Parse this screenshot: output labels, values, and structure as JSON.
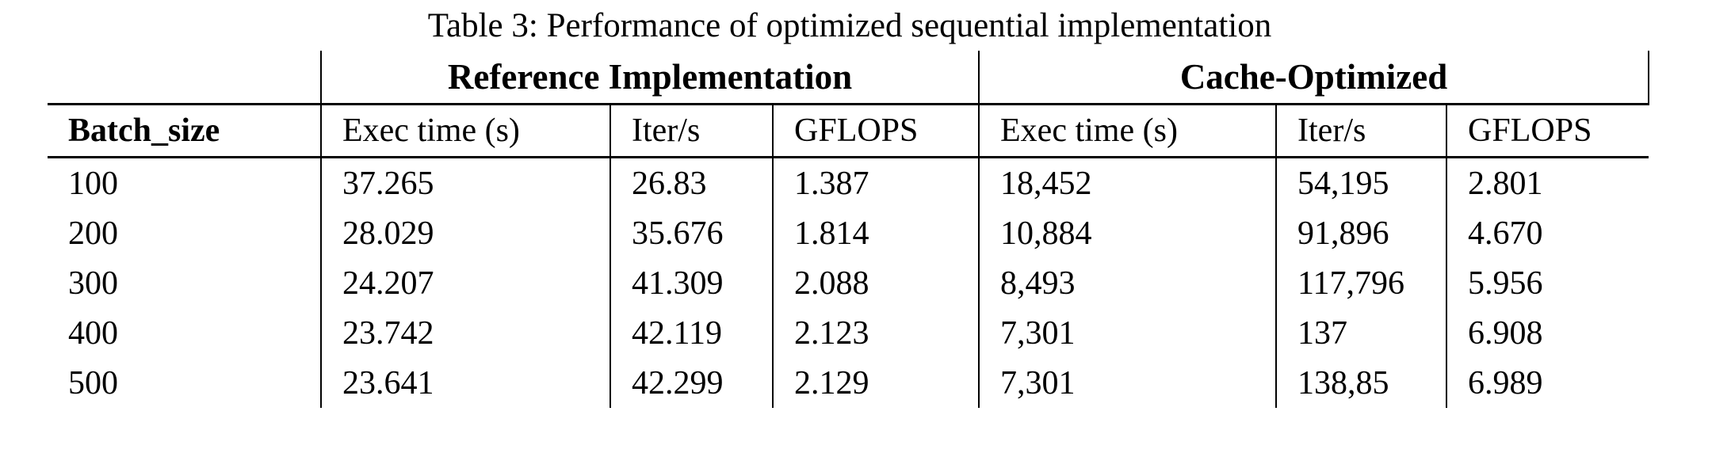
{
  "title": "Table 3: Performance of optimized sequential implementation",
  "table": {
    "group_headers": {
      "reference": "Reference Implementation",
      "cache": "Cache-Optimized"
    },
    "columns": {
      "batch": "Batch_size",
      "ref_exec": "Exec time (s)",
      "ref_iter": "Iter/s",
      "ref_gflops": "GFLOPS",
      "cache_exec": "Exec time (s)",
      "cache_iter": "Iter/s",
      "cache_gflops": "GFLOPS"
    },
    "rows": [
      [
        "100",
        "37.265",
        "26.83",
        "1.387",
        "18,452",
        "54,195",
        "2.801"
      ],
      [
        "200",
        "28.029",
        "35.676",
        "1.814",
        "10,884",
        "91,896",
        "4.670"
      ],
      [
        "300",
        "24.207",
        "41.309",
        "2.088",
        "8,493",
        "117,796",
        "5.956"
      ],
      [
        "400",
        "23.742",
        "42.119",
        "2.123",
        "7,301",
        "137",
        "6.908"
      ],
      [
        "500",
        "23.641",
        "42.299",
        "2.129",
        "7,301",
        "138,85",
        "6.989"
      ]
    ]
  },
  "colors": {
    "text": "#000000",
    "background": "#ffffff",
    "rule": "#000000"
  }
}
